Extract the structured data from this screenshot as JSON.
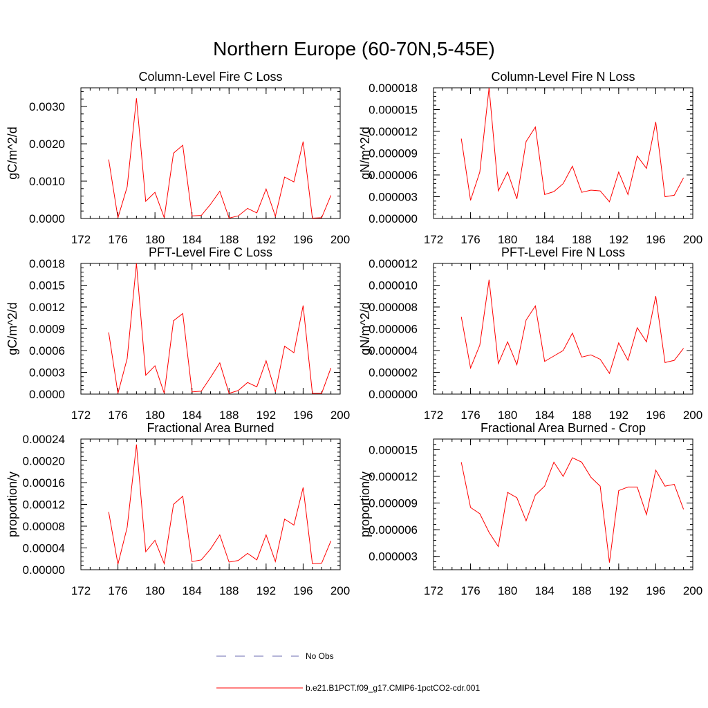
{
  "figure": {
    "title": "Northern Europe (60-70N,5-45E)"
  },
  "legend": {
    "entries": [
      {
        "label": "No Obs",
        "color": "#6a6ab0",
        "style": "dashed"
      },
      {
        "label": "b.e21.B1PCT.f09_g17.CMIP6-1pctCO2-cdr.001",
        "color": "#ff0000",
        "style": "solid"
      }
    ]
  },
  "chart_data": [
    {
      "type": "line",
      "title": "Column-Level Fire C Loss",
      "ylabel": "gC/m^2/d",
      "xlim": [
        172,
        200
      ],
      "ylim": [
        0,
        0.0035
      ],
      "xticks": [
        172,
        176,
        180,
        184,
        188,
        192,
        196,
        200
      ],
      "xtick_labels": [
        "172",
        "176",
        "180",
        "184",
        "188",
        "192",
        "196",
        "200"
      ],
      "yticks": [
        0,
        0.001,
        0.002,
        0.003
      ],
      "ytick_labels": [
        "0.0000",
        "0.0010",
        "0.0020",
        "0.0030"
      ],
      "series": [
        {
          "color": "#ff0000",
          "x": [
            175,
            176,
            177,
            178,
            179,
            180,
            181,
            182,
            183,
            184,
            185,
            186,
            187,
            188,
            189,
            190,
            191,
            192,
            193,
            194,
            195,
            196,
            197,
            198,
            199
          ],
          "y": [
            0.00158,
            2e-05,
            0.00085,
            0.00322,
            0.00046,
            0.0007,
            2e-05,
            0.00175,
            0.00196,
            7e-05,
            8e-05,
            0.00038,
            0.00073,
            1e-05,
            7e-05,
            0.00027,
            0.00015,
            0.00079,
            6e-05,
            0.00111,
            0.00098,
            0.00206,
            1e-05,
            2e-05,
            0.00062
          ]
        }
      ]
    },
    {
      "type": "line",
      "title": "Column-Level Fire N Loss",
      "ylabel": "gN/m^2/d",
      "xlim": [
        172,
        200
      ],
      "ylim": [
        0,
        1.8e-05
      ],
      "xticks": [
        172,
        176,
        180,
        184,
        188,
        192,
        196,
        200
      ],
      "xtick_labels": [
        "172",
        "176",
        "180",
        "184",
        "188",
        "192",
        "196",
        "200"
      ],
      "yticks": [
        0,
        3e-06,
        6e-06,
        9e-06,
        1.2e-05,
        1.5e-05,
        1.8e-05
      ],
      "ytick_labels": [
        "0.000000",
        "0.000003",
        "0.000006",
        "0.000009",
        "0.000012",
        "0.000015",
        "0.000018"
      ],
      "series": [
        {
          "color": "#ff0000",
          "x": [
            175,
            176,
            177,
            178,
            179,
            180,
            181,
            182,
            183,
            184,
            185,
            186,
            187,
            188,
            189,
            190,
            191,
            192,
            193,
            194,
            195,
            196,
            197,
            198,
            199
          ],
          "y": [
            1.1e-05,
            2.5e-06,
            6.4e-06,
            1.8e-05,
            3.8e-06,
            6.4e-06,
            2.7e-06,
            1.06e-05,
            1.26e-05,
            3.3e-06,
            3.7e-06,
            4.8e-06,
            7.2e-06,
            3.6e-06,
            3.9e-06,
            3.8e-06,
            2.3e-06,
            6.4e-06,
            3.3e-06,
            8.6e-06,
            6.9e-06,
            1.33e-05,
            3e-06,
            3.2e-06,
            5.6e-06
          ]
        }
      ]
    },
    {
      "type": "line",
      "title": "PFT-Level Fire C Loss",
      "ylabel": "gC/m^2/d",
      "xlim": [
        172,
        200
      ],
      "ylim": [
        0,
        0.0018
      ],
      "xticks": [
        172,
        176,
        180,
        184,
        188,
        192,
        196,
        200
      ],
      "xtick_labels": [
        "172",
        "176",
        "180",
        "184",
        "188",
        "192",
        "196",
        "200"
      ],
      "yticks": [
        0,
        0.0003,
        0.0006,
        0.0009,
        0.0012,
        0.0015,
        0.0018
      ],
      "ytick_labels": [
        "0.0000",
        "0.0003",
        "0.0006",
        "0.0009",
        "0.0012",
        "0.0015",
        "0.0018"
      ],
      "series": [
        {
          "color": "#ff0000",
          "x": [
            175,
            176,
            177,
            178,
            179,
            180,
            181,
            182,
            183,
            184,
            185,
            186,
            187,
            188,
            189,
            190,
            191,
            192,
            193,
            194,
            195,
            196,
            197,
            198,
            199
          ],
          "y": [
            0.00085,
            1e-05,
            0.00049,
            0.0018,
            0.00026,
            0.00039,
            1e-05,
            0.00101,
            0.00111,
            3e-05,
            4e-05,
            0.00023,
            0.00043,
            1e-05,
            5e-05,
            0.00016,
            0.0001,
            0.00046,
            3e-05,
            0.00066,
            0.00057,
            0.00122,
            1e-05,
            1e-05,
            0.00036
          ]
        }
      ]
    },
    {
      "type": "line",
      "title": "PFT-Level Fire N Loss",
      "ylabel": "gN/m^2/d",
      "xlim": [
        172,
        200
      ],
      "ylim": [
        0,
        1.2e-05
      ],
      "xticks": [
        172,
        176,
        180,
        184,
        188,
        192,
        196,
        200
      ],
      "xtick_labels": [
        "172",
        "176",
        "180",
        "184",
        "188",
        "192",
        "196",
        "200"
      ],
      "yticks": [
        0,
        2e-06,
        4e-06,
        6e-06,
        8e-06,
        1e-05,
        1.2e-05
      ],
      "ytick_labels": [
        "0.000000",
        "0.000002",
        "0.000004",
        "0.000006",
        "0.000008",
        "0.000010",
        "0.000012"
      ],
      "series": [
        {
          "color": "#ff0000",
          "x": [
            175,
            176,
            177,
            178,
            179,
            180,
            181,
            182,
            183,
            184,
            185,
            186,
            187,
            188,
            189,
            190,
            191,
            192,
            193,
            194,
            195,
            196,
            197,
            198,
            199
          ],
          "y": [
            7.1e-06,
            2.4e-06,
            4.5e-06,
            1.05e-05,
            2.8e-06,
            4.8e-06,
            2.7e-06,
            6.8e-06,
            8.1e-06,
            3e-06,
            3.5e-06,
            4e-06,
            5.6e-06,
            3.4e-06,
            3.6e-06,
            3.2e-06,
            1.9e-06,
            4.7e-06,
            3.1e-06,
            6.1e-06,
            4.8e-06,
            9e-06,
            2.9e-06,
            3.1e-06,
            4.2e-06
          ]
        }
      ]
    },
    {
      "type": "line",
      "title": "Fractional Area Burned",
      "ylabel": "proportion/y",
      "xlim": [
        172,
        200
      ],
      "ylim": [
        0,
        0.00024
      ],
      "xticks": [
        172,
        176,
        180,
        184,
        188,
        192,
        196,
        200
      ],
      "xtick_labels": [
        "172",
        "176",
        "180",
        "184",
        "188",
        "192",
        "196",
        "200"
      ],
      "yticks": [
        0,
        4e-05,
        8e-05,
        0.00012,
        0.00016,
        0.0002,
        0.00024
      ],
      "ytick_labels": [
        "0.00000",
        "0.00004",
        "0.00008",
        "0.00012",
        "0.00016",
        "0.00020",
        "0.00024"
      ],
      "series": [
        {
          "color": "#ff0000",
          "x": [
            175,
            176,
            177,
            178,
            179,
            180,
            181,
            182,
            183,
            184,
            185,
            186,
            187,
            188,
            189,
            190,
            191,
            192,
            193,
            194,
            195,
            196,
            197,
            198,
            199
          ],
          "y": [
            0.000106,
            1e-05,
            7.8e-05,
            0.00023,
            3.3e-05,
            5.4e-05,
            1.1e-05,
            0.00012,
            0.000135,
            1.5e-05,
            1.8e-05,
            3.8e-05,
            6.4e-05,
            1.4e-05,
            1.7e-05,
            3e-05,
            1.8e-05,
            6.4e-05,
            1.5e-05,
            9.3e-05,
            8.2e-05,
            0.000151,
            1.1e-05,
            1.2e-05,
            5.3e-05
          ]
        }
      ]
    },
    {
      "type": "line",
      "title": "Fractional Area Burned - Crop",
      "ylabel": "proportion/y",
      "xlim": [
        172,
        200
      ],
      "ylim": [
        1.5e-06,
        1.62e-05
      ],
      "xticks": [
        172,
        176,
        180,
        184,
        188,
        192,
        196,
        200
      ],
      "xtick_labels": [
        "172",
        "176",
        "180",
        "184",
        "188",
        "192",
        "196",
        "200"
      ],
      "yticks": [
        3e-06,
        6e-06,
        9e-06,
        1.2e-05,
        1.5e-05
      ],
      "ytick_labels": [
        "0.000003",
        "0.000006",
        "0.000009",
        "0.000012",
        "0.000015"
      ],
      "series": [
        {
          "color": "#ff0000",
          "x": [
            175,
            176,
            177,
            178,
            179,
            180,
            181,
            182,
            183,
            184,
            185,
            186,
            187,
            188,
            189,
            190,
            191,
            192,
            193,
            194,
            195,
            196,
            197,
            198,
            199
          ],
          "y": [
            1.36e-05,
            8.5e-06,
            7.8e-06,
            5.7e-06,
            4.1e-06,
            1.02e-05,
            9.6e-06,
            7e-06,
            9.9e-06,
            1.09e-05,
            1.36e-05,
            1.2e-05,
            1.41e-05,
            1.36e-05,
            1.19e-05,
            1.09e-05,
            2.3e-06,
            1.04e-05,
            1.08e-05,
            1.08e-05,
            7.7e-06,
            1.27e-05,
            1.09e-05,
            1.11e-05,
            8.3e-06
          ]
        }
      ]
    }
  ]
}
